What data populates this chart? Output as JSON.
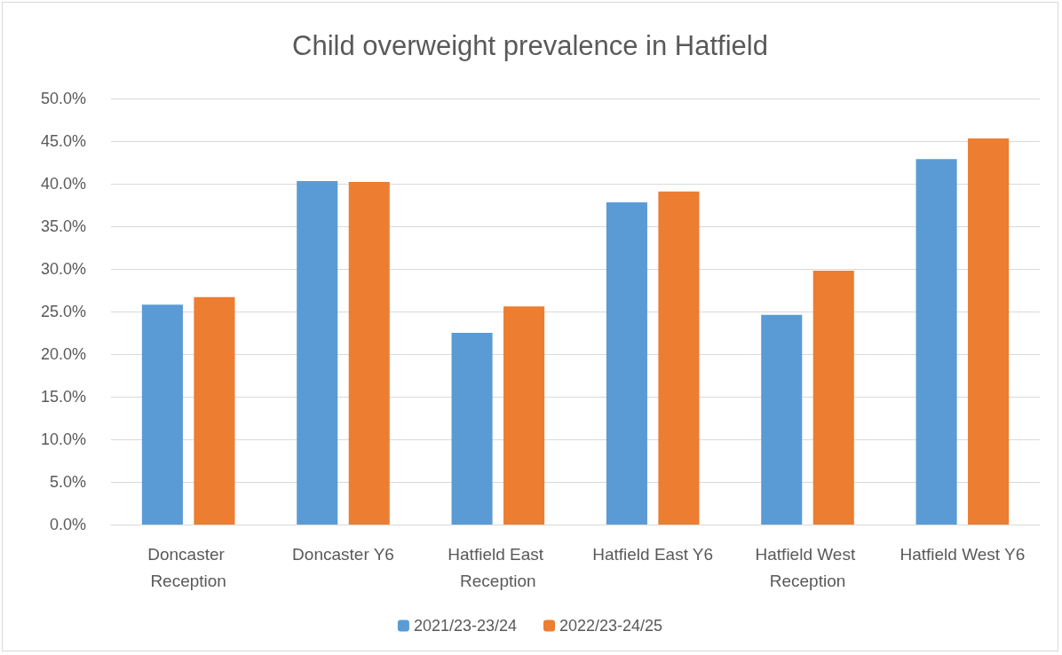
{
  "chart_data": {
    "type": "bar",
    "title": "Child overweight prevalence in Hatfield",
    "categories": [
      "Doncaster Reception",
      "Doncaster Y6",
      "Hatfield East Reception",
      "Hatfield East Y6",
      "Hatfield West Reception",
      "Hatfield West Y6"
    ],
    "series": [
      {
        "name": "2021/23-23/24",
        "color": "#5b9bd5",
        "values": [
          25.8,
          40.3,
          22.5,
          37.8,
          24.6,
          42.9
        ]
      },
      {
        "name": "2022/23-24/25",
        "color": "#ed7d31",
        "values": [
          26.7,
          40.2,
          25.6,
          39.1,
          29.8,
          45.3
        ]
      }
    ],
    "ylim": [
      0,
      50
    ],
    "yticks": [
      {
        "value": 0,
        "label": "0.0%"
      },
      {
        "value": 5,
        "label": "5.0%"
      },
      {
        "value": 10,
        "label": "10.0%"
      },
      {
        "value": 15,
        "label": "15.0%"
      },
      {
        "value": 20,
        "label": "20.0%"
      },
      {
        "value": 25,
        "label": "25.0%"
      },
      {
        "value": 30,
        "label": "30.0%"
      },
      {
        "value": 35,
        "label": "35.0%"
      },
      {
        "value": 40,
        "label": "40.0%"
      },
      {
        "value": 45,
        "label": "45.0%"
      },
      {
        "value": 50,
        "label": "50.0%"
      }
    ],
    "grid": "y",
    "legend": "bottom"
  }
}
